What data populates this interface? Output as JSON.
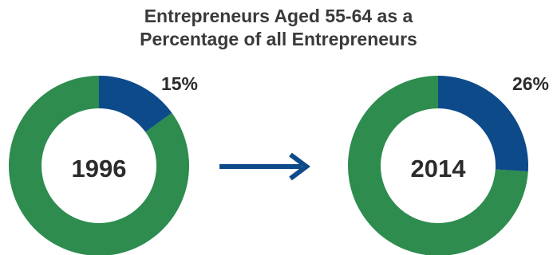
{
  "chart_data": {
    "type": "pie",
    "title_lines": [
      "Entrepreneurs Aged 55-64 as a",
      "Percentage of all Entrepreneurs"
    ],
    "charts": [
      {
        "label": "1996",
        "value_label": "15%",
        "value": 15
      },
      {
        "label": "2014",
        "value_label": "26%",
        "value": 26
      }
    ],
    "colors": {
      "highlight": "#0d4a8a",
      "remainder": "#2d8c4e",
      "arrow": "#0d4a8a"
    }
  }
}
